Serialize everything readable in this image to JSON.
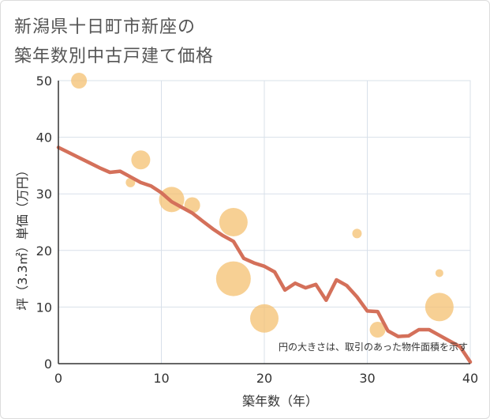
{
  "title_lines": [
    "新潟県十日町市新座の",
    "築年数別中古戸建て価格"
  ],
  "chart_data": {
    "type": "scatter",
    "title": "新潟県十日町市新座の築年数別中古戸建て価格",
    "xlabel": "築年数（年）",
    "ylabel": "坪（3.3㎡）単価（万円）",
    "xlim": [
      0,
      40
    ],
    "ylim": [
      0,
      50
    ],
    "xticks": [
      0,
      10,
      20,
      30,
      40
    ],
    "yticks": [
      0,
      10,
      20,
      30,
      40,
      50
    ],
    "grid": true,
    "note": "円の大きさは、取引のあった物件面積を示す",
    "points": [
      {
        "x": 2,
        "y": 50,
        "size": 3
      },
      {
        "x": 7,
        "y": 32,
        "size": 1
      },
      {
        "x": 8,
        "y": 36,
        "size": 4
      },
      {
        "x": 11,
        "y": 29,
        "size": 6
      },
      {
        "x": 13,
        "y": 28,
        "size": 3
      },
      {
        "x": 17,
        "y": 25,
        "size": 7
      },
      {
        "x": 17,
        "y": 15,
        "size": 9
      },
      {
        "x": 20,
        "y": 8,
        "size": 7
      },
      {
        "x": 29,
        "y": 23,
        "size": 1
      },
      {
        "x": 31,
        "y": 6,
        "size": 3
      },
      {
        "x": 37,
        "y": 16,
        "size": 0.5
      },
      {
        "x": 37,
        "y": 10,
        "size": 7
      }
    ],
    "series": [
      {
        "name": "trend",
        "x": [
          0,
          1,
          2,
          3,
          4,
          5,
          6,
          7,
          8,
          9,
          10,
          11,
          12,
          13,
          14,
          15,
          16,
          17,
          18,
          19,
          20,
          21,
          22,
          23,
          24,
          25,
          26,
          27,
          28,
          29,
          30,
          31,
          32,
          33,
          34,
          35,
          36,
          37,
          38,
          39,
          40
        ],
        "values": [
          38.2,
          37.3,
          36.4,
          35.5,
          34.6,
          33.8,
          34.0,
          33.0,
          32.0,
          31.4,
          30.2,
          28.6,
          27.6,
          26.6,
          25.2,
          23.8,
          22.6,
          21.6,
          18.6,
          17.8,
          17.2,
          16.2,
          13.0,
          14.2,
          13.4,
          14.0,
          11.2,
          14.8,
          13.8,
          11.8,
          9.3,
          9.2,
          5.8,
          4.8,
          4.9,
          6.0,
          6.0,
          5.0,
          4.0,
          3.0,
          0.3
        ]
      }
    ]
  },
  "colors": {
    "line": "#d4705a",
    "bubble": "#f4c070",
    "axis": "#333333",
    "grid": "#d8e0ea",
    "title": "#555555",
    "tick": "#333333"
  }
}
